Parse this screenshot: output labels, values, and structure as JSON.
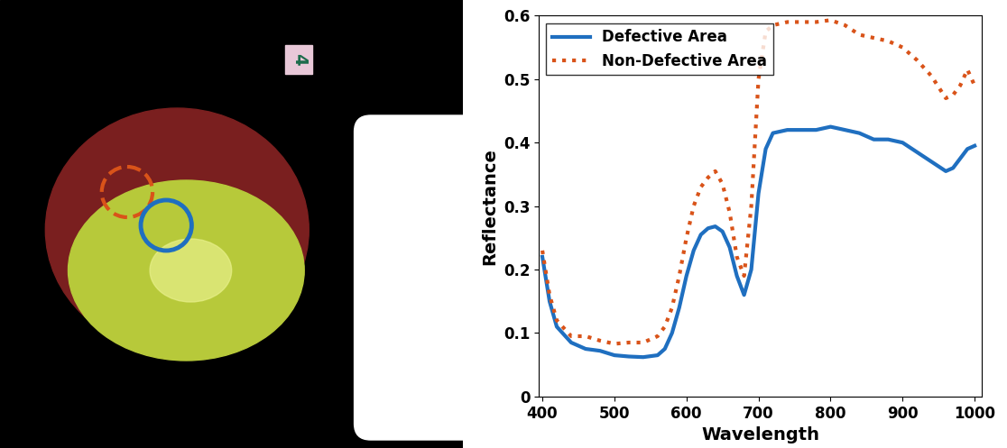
{
  "chart_data": {
    "type": "line",
    "xlabel": "Wavelength",
    "ylabel": "Reflectance",
    "x": [
      400,
      410,
      420,
      440,
      460,
      480,
      500,
      520,
      540,
      560,
      570,
      580,
      590,
      600,
      610,
      620,
      630,
      640,
      650,
      660,
      670,
      680,
      690,
      700,
      710,
      720,
      740,
      760,
      780,
      800,
      820,
      840,
      860,
      880,
      900,
      920,
      940,
      960,
      970,
      980,
      990,
      1000
    ],
    "series": [
      {
        "name": "Defective Area",
        "color": "#1f6fc0",
        "line_style": "solid",
        "values": [
          0.22,
          0.15,
          0.11,
          0.085,
          0.075,
          0.072,
          0.065,
          0.063,
          0.062,
          0.065,
          0.075,
          0.1,
          0.14,
          0.19,
          0.23,
          0.255,
          0.265,
          0.268,
          0.26,
          0.235,
          0.19,
          0.16,
          0.2,
          0.32,
          0.39,
          0.415,
          0.42,
          0.42,
          0.42,
          0.425,
          0.42,
          0.415,
          0.405,
          0.405,
          0.4,
          0.385,
          0.37,
          0.355,
          0.36,
          0.375,
          0.39,
          0.395
        ]
      },
      {
        "name": "Non-Defective Area",
        "color": "#d95319",
        "line_style": "dotted",
        "values": [
          0.23,
          0.16,
          0.12,
          0.095,
          0.095,
          0.088,
          0.083,
          0.085,
          0.085,
          0.095,
          0.11,
          0.14,
          0.19,
          0.25,
          0.3,
          0.33,
          0.345,
          0.355,
          0.335,
          0.29,
          0.22,
          0.19,
          0.3,
          0.5,
          0.575,
          0.585,
          0.59,
          0.59,
          0.59,
          0.593,
          0.585,
          0.57,
          0.565,
          0.56,
          0.55,
          0.53,
          0.505,
          0.47,
          0.475,
          0.49,
          0.515,
          0.49
        ]
      }
    ],
    "xlim": [
      395,
      1010
    ],
    "xticks": [
      400,
      500,
      600,
      700,
      800,
      900,
      1000
    ],
    "ylim": [
      0,
      0.6
    ],
    "yticks": [
      0,
      0.1,
      0.2,
      0.3,
      0.4,
      0.5,
      0.6
    ],
    "grid": false,
    "legend": "upper left"
  },
  "photo": {
    "tag_text": "4"
  }
}
